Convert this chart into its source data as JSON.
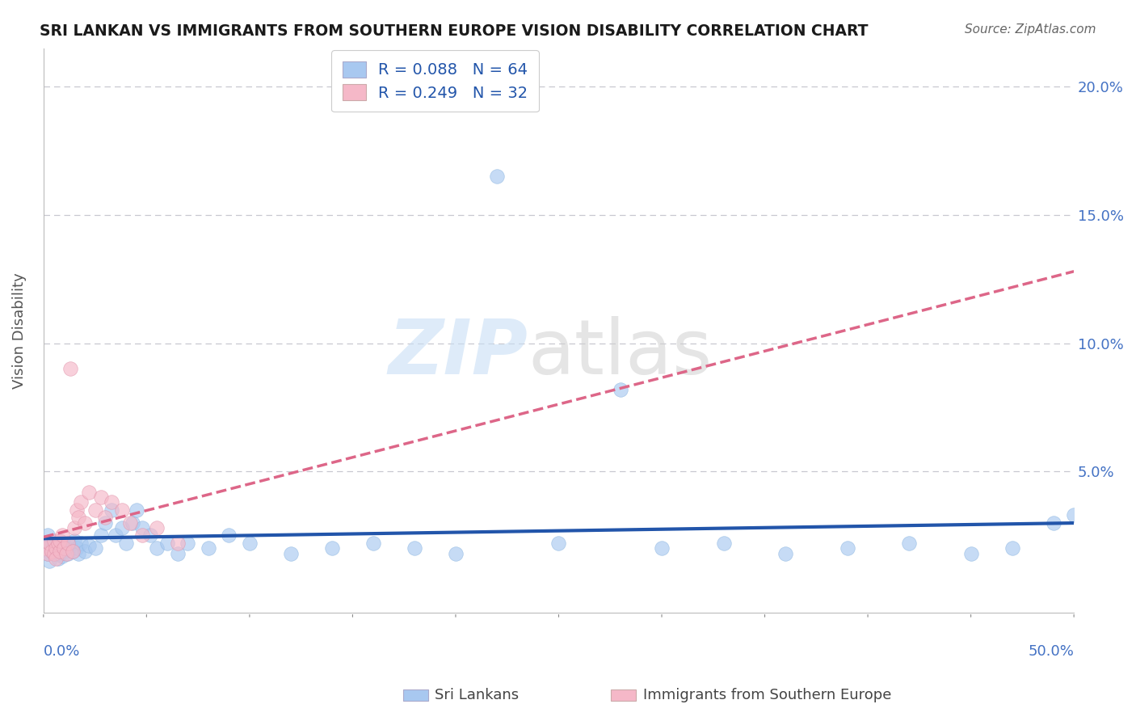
{
  "title": "SRI LANKAN VS IMMIGRANTS FROM SOUTHERN EUROPE VISION DISABILITY CORRELATION CHART",
  "source": "Source: ZipAtlas.com",
  "ylabel": "Vision Disability",
  "xlim": [
    0,
    0.5
  ],
  "ylim": [
    -0.005,
    0.215
  ],
  "r_sri": 0.088,
  "n_sri": 64,
  "r_south": 0.249,
  "n_south": 32,
  "color_sri": "#a8c8f0",
  "color_south": "#f5b8c8",
  "line_color_sri": "#2255aa",
  "line_color_south": "#dd6688",
  "legend_label_sri": "Sri Lankans",
  "legend_label_south": "Immigrants from Southern Europe",
  "background_color": "#ffffff",
  "sri_x": [
    0.001,
    0.002,
    0.002,
    0.003,
    0.003,
    0.004,
    0.004,
    0.005,
    0.005,
    0.006,
    0.006,
    0.007,
    0.007,
    0.008,
    0.008,
    0.009,
    0.009,
    0.01,
    0.01,
    0.011,
    0.012,
    0.013,
    0.014,
    0.015,
    0.016,
    0.017,
    0.018,
    0.02,
    0.022,
    0.025,
    0.028,
    0.03,
    0.033,
    0.035,
    0.038,
    0.04,
    0.043,
    0.045,
    0.048,
    0.052,
    0.055,
    0.06,
    0.065,
    0.07,
    0.08,
    0.09,
    0.1,
    0.12,
    0.14,
    0.16,
    0.18,
    0.2,
    0.22,
    0.25,
    0.28,
    0.3,
    0.33,
    0.36,
    0.39,
    0.42,
    0.45,
    0.47,
    0.49,
    0.5
  ],
  "sri_y": [
    0.02,
    0.018,
    0.025,
    0.022,
    0.015,
    0.02,
    0.023,
    0.018,
    0.021,
    0.019,
    0.022,
    0.016,
    0.02,
    0.018,
    0.023,
    0.021,
    0.017,
    0.019,
    0.022,
    0.02,
    0.018,
    0.021,
    0.019,
    0.023,
    0.02,
    0.018,
    0.022,
    0.019,
    0.021,
    0.02,
    0.025,
    0.03,
    0.035,
    0.025,
    0.028,
    0.022,
    0.03,
    0.035,
    0.028,
    0.025,
    0.02,
    0.022,
    0.018,
    0.022,
    0.02,
    0.025,
    0.022,
    0.018,
    0.02,
    0.022,
    0.02,
    0.018,
    0.165,
    0.022,
    0.082,
    0.02,
    0.022,
    0.018,
    0.02,
    0.022,
    0.018,
    0.02,
    0.03,
    0.033
  ],
  "south_x": [
    0.001,
    0.002,
    0.003,
    0.004,
    0.005,
    0.005,
    0.006,
    0.006,
    0.007,
    0.008,
    0.008,
    0.009,
    0.01,
    0.011,
    0.012,
    0.013,
    0.014,
    0.015,
    0.016,
    0.017,
    0.018,
    0.02,
    0.022,
    0.025,
    0.028,
    0.03,
    0.033,
    0.038,
    0.042,
    0.048,
    0.055,
    0.065
  ],
  "south_y": [
    0.02,
    0.018,
    0.022,
    0.019,
    0.023,
    0.018,
    0.02,
    0.016,
    0.022,
    0.019,
    0.023,
    0.025,
    0.02,
    0.018,
    0.022,
    0.09,
    0.019,
    0.028,
    0.035,
    0.032,
    0.038,
    0.03,
    0.042,
    0.035,
    0.04,
    0.032,
    0.038,
    0.035,
    0.03,
    0.025,
    0.028,
    0.022
  ]
}
